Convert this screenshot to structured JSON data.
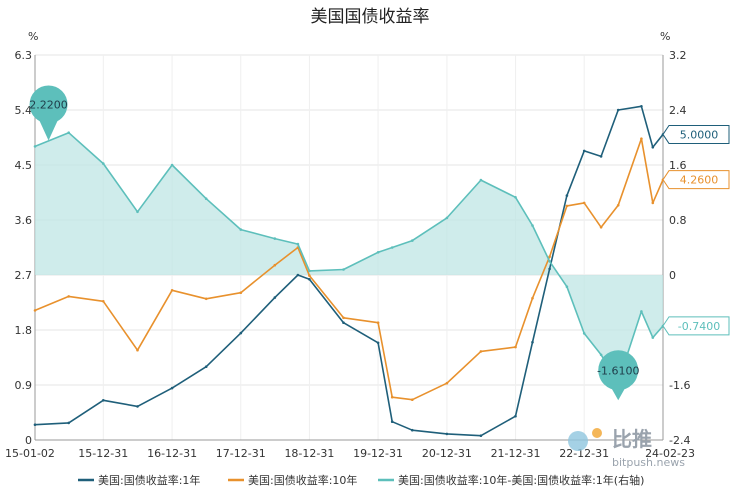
{
  "chart_data": {
    "type": "line",
    "title": "美国国债收益率",
    "left_axis": {
      "unit": "%",
      "ylim": [
        0,
        6.3
      ],
      "ticks": [
        "0",
        "0.9",
        "1.8",
        "2.7",
        "3.6",
        "4.5",
        "5.4",
        "6.3"
      ]
    },
    "right_axis": {
      "unit": "%",
      "ylim": [
        -2.4,
        3.2
      ],
      "ticks": [
        "-2.4",
        "-1.6",
        "-0.8",
        "0",
        "0.8",
        "1.6",
        "2.4",
        "3.2"
      ]
    },
    "x_ticks": [
      "15-01-02",
      "15-12-31",
      "16-12-31",
      "17-12-31",
      "18-12-31",
      "19-12-31",
      "20-12-31",
      "21-12-31",
      "22-12-31",
      "24-02-23"
    ],
    "x_tick_dates": [
      "2015-01-02",
      "2015-12-31",
      "2016-12-31",
      "2017-12-31",
      "2018-12-31",
      "2019-12-31",
      "2020-12-31",
      "2021-12-31",
      "2022-12-31",
      "2024-02-23"
    ],
    "grid": true,
    "legend_position": "bottom",
    "colors": {
      "s1": "#1f5f7a",
      "s10": "#e8912d",
      "spread": "#5dbfbb",
      "spread_fill": "#bfe6e4"
    },
    "series": [
      {
        "name": "美国:国债收益率:1年",
        "axis": "left",
        "x": [
          "2015-01-02",
          "2015-06-30",
          "2015-12-31",
          "2016-06-30",
          "2016-12-31",
          "2017-06-30",
          "2017-12-31",
          "2018-06-30",
          "2018-10-31",
          "2018-12-31",
          "2019-06-30",
          "2019-12-31",
          "2020-03-15",
          "2020-06-30",
          "2020-12-31",
          "2021-06-30",
          "2021-12-31",
          "2022-03-31",
          "2022-06-30",
          "2022-09-30",
          "2022-12-31",
          "2023-03-31",
          "2023-06-30",
          "2023-10-31",
          "2023-12-31",
          "2024-02-23"
        ],
        "values": [
          0.25,
          0.28,
          0.65,
          0.55,
          0.85,
          1.2,
          1.75,
          2.33,
          2.7,
          2.63,
          1.92,
          1.59,
          0.3,
          0.16,
          0.1,
          0.07,
          0.39,
          1.6,
          2.8,
          4.0,
          4.73,
          4.64,
          5.4,
          5.46,
          4.79,
          5.0
        ]
      },
      {
        "name": "美国:国债收益率:10年",
        "axis": "left",
        "x": [
          "2015-01-02",
          "2015-06-30",
          "2015-12-31",
          "2016-06-30",
          "2016-12-31",
          "2017-06-30",
          "2017-12-31",
          "2018-06-30",
          "2018-10-31",
          "2018-12-31",
          "2019-06-30",
          "2019-12-31",
          "2020-03-15",
          "2020-06-30",
          "2020-12-31",
          "2021-06-30",
          "2021-12-31",
          "2022-03-31",
          "2022-06-30",
          "2022-09-30",
          "2022-12-31",
          "2023-03-31",
          "2023-06-30",
          "2023-10-31",
          "2023-12-31",
          "2024-02-23"
        ],
        "values": [
          2.12,
          2.35,
          2.27,
          1.47,
          2.45,
          2.31,
          2.41,
          2.86,
          3.15,
          2.69,
          2.0,
          1.92,
          0.7,
          0.66,
          0.93,
          1.45,
          1.52,
          2.32,
          3.0,
          3.83,
          3.88,
          3.48,
          3.84,
          4.93,
          3.88,
          4.26
        ]
      },
      {
        "name": "美国:国债收益率:10年-美国:国债收益率:1年(右轴)",
        "axis": "right",
        "x": [
          "2015-01-02",
          "2015-06-30",
          "2015-12-31",
          "2016-06-30",
          "2016-12-31",
          "2017-06-30",
          "2017-12-31",
          "2018-06-30",
          "2018-10-31",
          "2018-12-31",
          "2019-06-30",
          "2019-12-31",
          "2020-03-15",
          "2020-06-30",
          "2020-12-31",
          "2021-06-30",
          "2021-12-31",
          "2022-03-31",
          "2022-06-30",
          "2022-09-30",
          "2022-12-31",
          "2023-03-31",
          "2023-06-30",
          "2023-10-31",
          "2023-12-31",
          "2024-02-23"
        ],
        "values": [
          1.87,
          2.07,
          1.62,
          0.92,
          1.6,
          1.11,
          0.66,
          0.53,
          0.45,
          0.06,
          0.08,
          0.33,
          0.4,
          0.5,
          0.83,
          1.38,
          1.13,
          0.72,
          0.2,
          -0.17,
          -0.85,
          -1.16,
          -1.56,
          -0.53,
          -0.91,
          -0.74
        ]
      }
    ],
    "annotations": [
      {
        "series": 2,
        "date": "2015-03-15",
        "label": "2.2200",
        "type": "max-marker"
      },
      {
        "series": 2,
        "date": "2023-06-30",
        "label": "-1.6100",
        "type": "min-marker"
      },
      {
        "series": 0,
        "label": "5.0000",
        "type": "end-label",
        "side": "right"
      },
      {
        "series": 1,
        "label": "4.2600",
        "type": "end-label",
        "side": "right"
      },
      {
        "series": 2,
        "label": "-0.7400",
        "type": "end-label",
        "side": "right"
      }
    ]
  },
  "watermark": {
    "brand": "比推",
    "site": "bitpush.news"
  }
}
